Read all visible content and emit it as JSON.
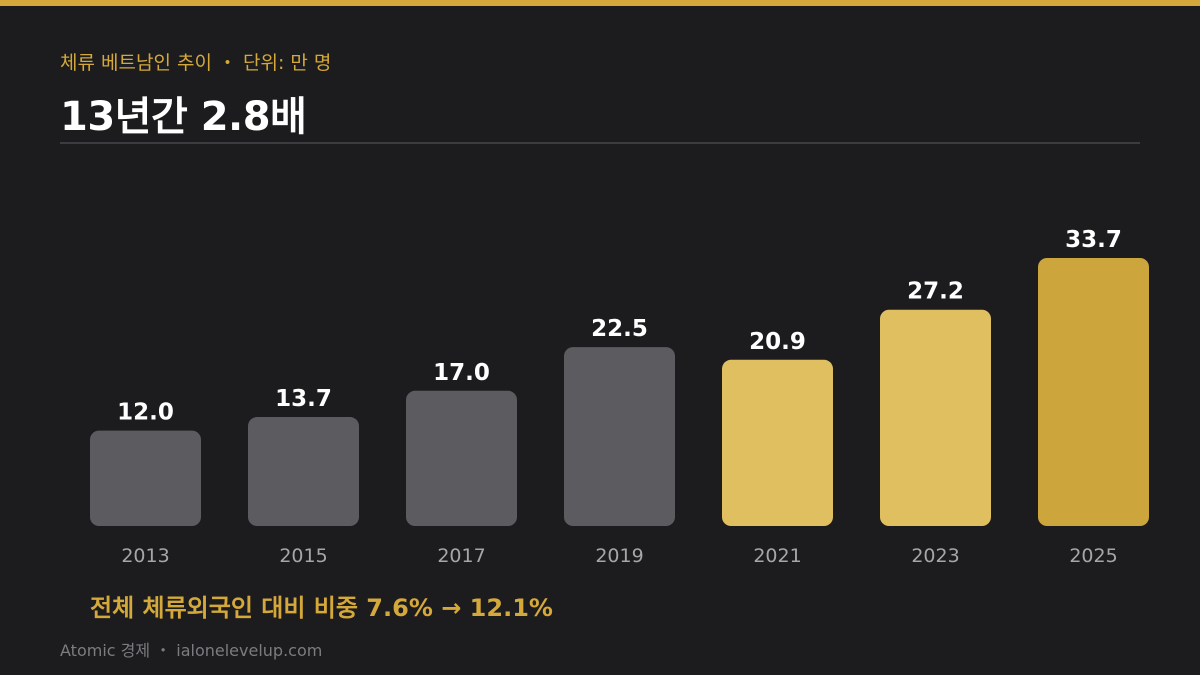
{
  "header": {
    "subtitle": "체류 베트남인 추이 ・ 단위: 만 명",
    "title": "13년간 2.8배"
  },
  "chart_data": {
    "type": "bar",
    "categories": [
      "2013",
      "2015",
      "2017",
      "2019",
      "2021",
      "2023",
      "2025"
    ],
    "values": [
      12.0,
      13.7,
      17.0,
      22.5,
      20.9,
      27.2,
      33.7
    ],
    "value_labels": [
      "12.0",
      "13.7",
      "17.0",
      "22.5",
      "20.9",
      "27.2",
      "33.7"
    ],
    "bar_colors": [
      "#5b5b60",
      "#5b5b60",
      "#5b5b60",
      "#5b5b60",
      "#e0bf60",
      "#e0bf60",
      "#cca53c"
    ],
    "ylim": [
      0,
      33.7
    ],
    "grid": false,
    "legend": "none"
  },
  "note": "전체 체류외국인 대비 비중  7.6%  →  12.1%",
  "footer": "Atomic 경제 ・ ialonelevelup.com",
  "colors": {
    "background": "#1c1c1e",
    "accent": "#d4a83a",
    "text": "#ffffff",
    "muted_bar": "#5b5b60",
    "highlight_bar": "#e0bf60",
    "latest_bar": "#cca53c"
  }
}
